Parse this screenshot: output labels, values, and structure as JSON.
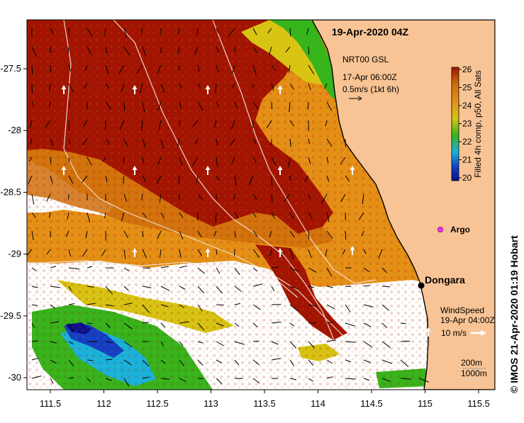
{
  "map": {
    "title": "19-Apr-2020 04Z",
    "current_label": {
      "line1": "NRT00 GSL",
      "line2": "17-Apr 06:00Z",
      "line3": "0.5m/s (1kt 6h)"
    },
    "wind_label": {
      "line1": "WindSpeed",
      "line2": "19-Apr 04:00Z",
      "line3": "10 m/s"
    },
    "depth_label": {
      "line1": "200m",
      "line2": "1000m"
    },
    "argo_label": "Argo",
    "place_label": "Dongara",
    "credit": "© IMOS 21-Apr-2020 01:19 Hobart",
    "colorbar": {
      "title": "Filled 4h comp, p50, All Sats",
      "ticks": [
        "26",
        "25",
        "24",
        "23",
        "22",
        "21",
        "20"
      ]
    },
    "x_ticks": [
      "111.5",
      "112",
      "112.5",
      "113",
      "113.5",
      "114",
      "114.5",
      "115",
      "115.5"
    ],
    "y_ticks": [
      "-27.5",
      "-28",
      "-28.5",
      "-29",
      "-29.5",
      "-30"
    ],
    "colors": {
      "land": "#f8c495",
      "no_data": "#ffffff",
      "warm": "#a21402",
      "mid": "#cf6e0c",
      "orange": "#e49016",
      "yellow": "#d7c413",
      "green": "#35b41c",
      "cyan": "#17b3dd",
      "blue": "#1040c8",
      "navy": "#081090"
    }
  }
}
